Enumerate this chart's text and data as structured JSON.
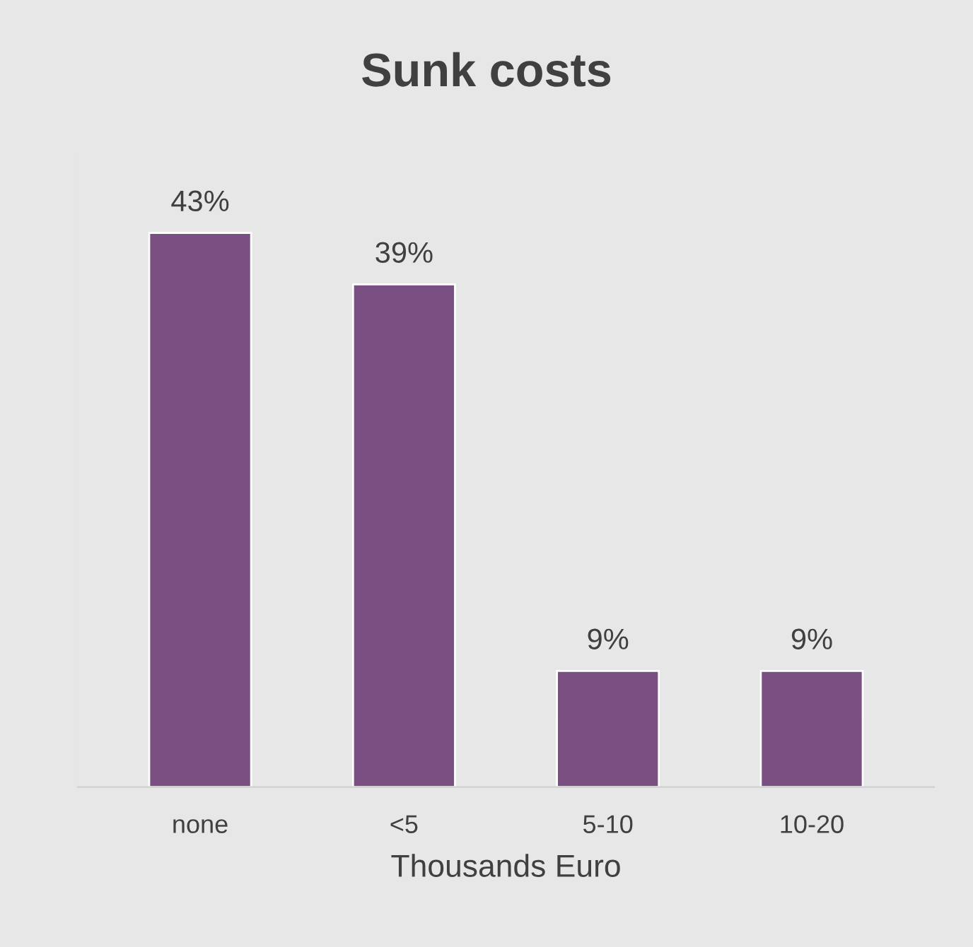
{
  "chart_data": {
    "type": "bar",
    "title": "Sunk costs",
    "xlabel": "Thousands Euro",
    "categories": [
      "none",
      "<5",
      "5-10",
      "10-20"
    ],
    "values": [
      43,
      39,
      9,
      9
    ],
    "value_labels": [
      "43%",
      "39%",
      "9%",
      "9%"
    ],
    "color": "#7a5083"
  }
}
